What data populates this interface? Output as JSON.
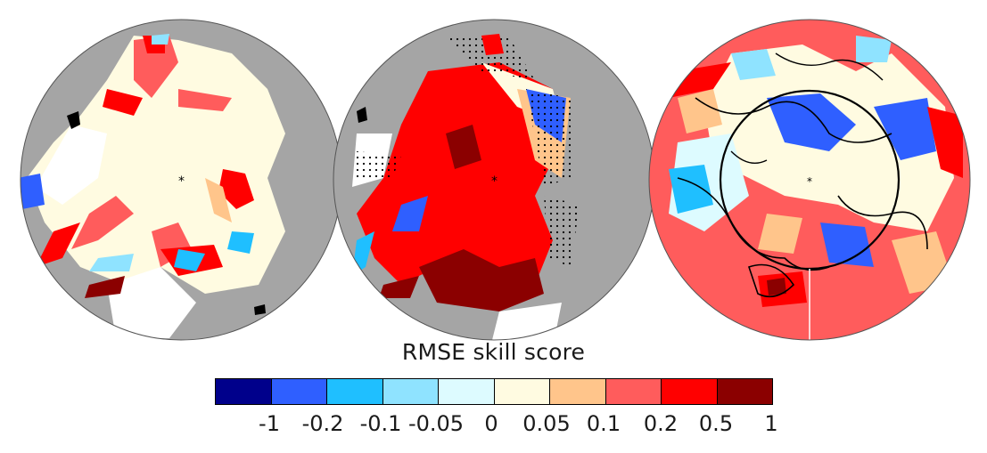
{
  "panels": [
    {
      "id": "sea-ice-thickness"
    },
    {
      "id": "sea-ice-concentration"
    },
    {
      "id": "atmosphere-field"
    }
  ],
  "colorbar": {
    "title": "RMSE skill score",
    "colors": [
      "#00008b",
      "#2f5fff",
      "#1fbfff",
      "#8fe3ff",
      "#ddfbff",
      "#fffbe1",
      "#ffc58b",
      "#ff5c5c",
      "#ff0000",
      "#8b0000"
    ],
    "tick_labels": [
      "-1",
      "-0.2",
      "-0.1",
      "-0.05",
      "0",
      "0.05",
      "0.1",
      "0.2",
      "0.5",
      "1"
    ]
  },
  "colors": {
    "land": "#a5a5a5",
    "background": "#ffffff"
  }
}
